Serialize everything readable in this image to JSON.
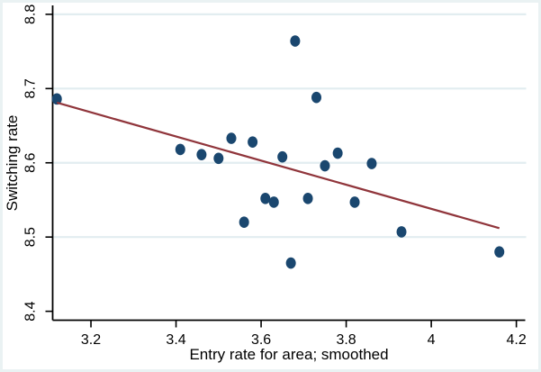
{
  "chart_data": {
    "type": "scatter",
    "title": "",
    "xlabel": "Entry rate for area; smoothed",
    "ylabel": "Switching rate",
    "xlim": [
      3.11,
      4.223
    ],
    "ylim": [
      8.388,
      8.812
    ],
    "x_ticks": [
      {
        "v": 3.2,
        "label": "3.2"
      },
      {
        "v": 3.4,
        "label": "3.4"
      },
      {
        "v": 3.6,
        "label": "3.6"
      },
      {
        "v": 3.8,
        "label": "3.8"
      },
      {
        "v": 4.0,
        "label": "4"
      },
      {
        "v": 4.2,
        "label": "4.2"
      }
    ],
    "y_ticks": [
      {
        "v": 8.4,
        "label": "8.4"
      },
      {
        "v": 8.5,
        "label": "8.5"
      },
      {
        "v": 8.6,
        "label": "8.6"
      },
      {
        "v": 8.7,
        "label": "8.7"
      },
      {
        "v": 8.8,
        "label": "8.8"
      }
    ],
    "grid_y": [
      8.5,
      8.6,
      8.7,
      8.8
    ],
    "grid_on": true,
    "legend": "none",
    "points": [
      [
        3.12,
        8.686
      ],
      [
        3.41,
        8.618
      ],
      [
        3.46,
        8.611
      ],
      [
        3.5,
        8.606
      ],
      [
        3.53,
        8.633
      ],
      [
        3.56,
        8.52
      ],
      [
        3.58,
        8.628
      ],
      [
        3.61,
        8.552
      ],
      [
        3.63,
        8.547
      ],
      [
        3.65,
        8.608
      ],
      [
        3.67,
        8.465
      ],
      [
        3.68,
        8.764
      ],
      [
        3.71,
        8.552
      ],
      [
        3.73,
        8.688
      ],
      [
        3.75,
        8.596
      ],
      [
        3.78,
        8.613
      ],
      [
        3.82,
        8.547
      ],
      [
        3.86,
        8.599
      ],
      [
        3.93,
        8.507
      ],
      [
        4.16,
        8.48
      ]
    ],
    "fit_line": {
      "x1": 3.12,
      "y1": 8.681,
      "x2": 4.16,
      "y2": 8.512
    },
    "colors": {
      "marker": "#1a476f",
      "fit_line": "#90353b",
      "grid": "#e2edf0",
      "axis": "#000000",
      "frame": "#eaf2f3",
      "plot_bg": "#ffffff",
      "text": "#000000"
    }
  }
}
